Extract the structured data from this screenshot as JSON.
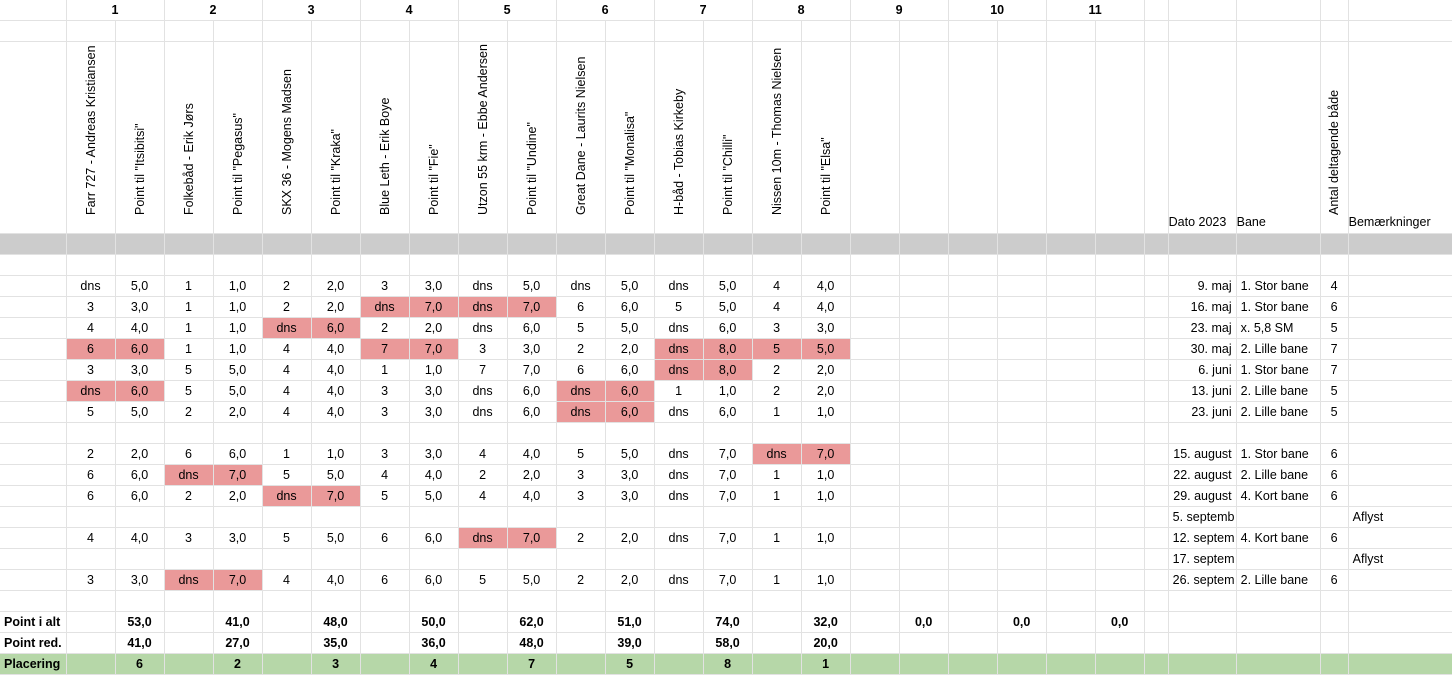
{
  "column_numbers": [
    "1",
    "2",
    "3",
    "4",
    "5",
    "6",
    "7",
    "8",
    "9",
    "10",
    "11"
  ],
  "boats": [
    {
      "boat_header": "Farr 727 - Andreas Kristiansen",
      "point_header": "Point til \"Itsibitsi\""
    },
    {
      "boat_header": "Folkebåd - Erik Jørs",
      "point_header": "Point til \"Pegasus\""
    },
    {
      "boat_header": "SKX 36 - Mogens Madsen",
      "point_header": "Point til \"Kraka\""
    },
    {
      "boat_header": "Blue Leth - Erik Boye",
      "point_header": "Point til \"Fie\""
    },
    {
      "boat_header": "Utzon 55 krm - Ebbe Andersen",
      "point_header": "Point til \"Undine\""
    },
    {
      "boat_header": "Great Dane - Laurits Nielsen",
      "point_header": "Point til \"Monalisa\""
    },
    {
      "boat_header": "H-båd - Tobias Kirkeby",
      "point_header": "Point til \"Chilli\""
    },
    {
      "boat_header": "Nissen 10m - Thomas Nielsen",
      "point_header": "Point til \"Elsa\""
    }
  ],
  "right_headers": {
    "dato": "Dato 2023",
    "bane": "Bane",
    "antal": "Antal deltagende både",
    "bemaerk": "Bemærkninger"
  },
  "rows": [
    {
      "cells": [
        [
          "dns",
          "5,0"
        ],
        [
          "1",
          "1,0"
        ],
        [
          "2",
          "2,0"
        ],
        [
          "3",
          "3,0"
        ],
        [
          "dns",
          "5,0"
        ],
        [
          "dns",
          "5,0"
        ],
        [
          "dns",
          "5,0"
        ],
        [
          "4",
          "4,0"
        ]
      ],
      "red": [],
      "dato": "9. maj",
      "bane": "1. Stor bane",
      "antal": "4",
      "bem": ""
    },
    {
      "cells": [
        [
          "3",
          "3,0"
        ],
        [
          "1",
          "1,0"
        ],
        [
          "2",
          "2,0"
        ],
        [
          "dns",
          "7,0"
        ],
        [
          "dns",
          "7,0"
        ],
        [
          "6",
          "6,0"
        ],
        [
          "5",
          "5,0"
        ],
        [
          "4",
          "4,0"
        ]
      ],
      "red": [
        3,
        4
      ],
      "dato": "16. maj",
      "bane": "1. Stor bane",
      "antal": "6",
      "bem": ""
    },
    {
      "cells": [
        [
          "4",
          "4,0"
        ],
        [
          "1",
          "1,0"
        ],
        [
          "dns",
          "6,0"
        ],
        [
          "2",
          "2,0"
        ],
        [
          "dns",
          "6,0"
        ],
        [
          "5",
          "5,0"
        ],
        [
          "dns",
          "6,0"
        ],
        [
          "3",
          "3,0"
        ]
      ],
      "red": [
        2
      ],
      "dato": "23. maj",
      "bane": "x. 5,8 SM",
      "antal": "5",
      "bem": ""
    },
    {
      "cells": [
        [
          "6",
          "6,0"
        ],
        [
          "1",
          "1,0"
        ],
        [
          "4",
          "4,0"
        ],
        [
          "7",
          "7,0"
        ],
        [
          "3",
          "3,0"
        ],
        [
          "2",
          "2,0"
        ],
        [
          "dns",
          "8,0"
        ],
        [
          "5",
          "5,0"
        ]
      ],
      "red": [
        0,
        3,
        6,
        7
      ],
      "dato": "30. maj",
      "bane": "2. Lille bane",
      "antal": "7",
      "bem": ""
    },
    {
      "cells": [
        [
          "3",
          "3,0"
        ],
        [
          "5",
          "5,0"
        ],
        [
          "4",
          "4,0"
        ],
        [
          "1",
          "1,0"
        ],
        [
          "7",
          "7,0"
        ],
        [
          "6",
          "6,0"
        ],
        [
          "dns",
          "8,0"
        ],
        [
          "2",
          "2,0"
        ]
      ],
      "red": [
        6
      ],
      "dato": "6. juni",
      "bane": "1. Stor bane",
      "antal": "7",
      "bem": ""
    },
    {
      "cells": [
        [
          "dns",
          "6,0"
        ],
        [
          "5",
          "5,0"
        ],
        [
          "4",
          "4,0"
        ],
        [
          "3",
          "3,0"
        ],
        [
          "dns",
          "6,0"
        ],
        [
          "dns",
          "6,0"
        ],
        [
          "1",
          "1,0"
        ],
        [
          "2",
          "2,0"
        ]
      ],
      "red": [
        0,
        5
      ],
      "dato": "13. juni",
      "bane": "2. Lille bane",
      "antal": "5",
      "bem": ""
    },
    {
      "cells": [
        [
          "5",
          "5,0"
        ],
        [
          "2",
          "2,0"
        ],
        [
          "4",
          "4,0"
        ],
        [
          "3",
          "3,0"
        ],
        [
          "dns",
          "6,0"
        ],
        [
          "dns",
          "6,0"
        ],
        [
          "dns",
          "6,0"
        ],
        [
          "1",
          "1,0"
        ]
      ],
      "red": [
        5
      ],
      "dato": "23. juni",
      "bane": "2. Lille bane",
      "antal": "5",
      "bem": ""
    },
    {
      "empty": true
    },
    {
      "cells": [
        [
          "2",
          "2,0"
        ],
        [
          "6",
          "6,0"
        ],
        [
          "1",
          "1,0"
        ],
        [
          "3",
          "3,0"
        ],
        [
          "4",
          "4,0"
        ],
        [
          "5",
          "5,0"
        ],
        [
          "dns",
          "7,0"
        ],
        [
          "dns",
          "7,0"
        ]
      ],
      "red": [
        7
      ],
      "dato": "15. august",
      "bane": "1. Stor bane",
      "antal": "6",
      "bem": ""
    },
    {
      "cells": [
        [
          "6",
          "6,0"
        ],
        [
          "dns",
          "7,0"
        ],
        [
          "5",
          "5,0"
        ],
        [
          "4",
          "4,0"
        ],
        [
          "2",
          "2,0"
        ],
        [
          "3",
          "3,0"
        ],
        [
          "dns",
          "7,0"
        ],
        [
          "1",
          "1,0"
        ]
      ],
      "red": [
        1
      ],
      "dato": "22. august",
      "bane": "2. Lille bane",
      "antal": "6",
      "bem": ""
    },
    {
      "cells": [
        [
          "6",
          "6,0"
        ],
        [
          "2",
          "2,0"
        ],
        [
          "dns",
          "7,0"
        ],
        [
          "5",
          "5,0"
        ],
        [
          "4",
          "4,0"
        ],
        [
          "3",
          "3,0"
        ],
        [
          "dns",
          "7,0"
        ],
        [
          "1",
          "1,0"
        ]
      ],
      "red": [
        2
      ],
      "dato": "29. august",
      "bane": "4. Kort bane",
      "antal": "6",
      "bem": ""
    },
    {
      "cells": [
        [
          "",
          ""
        ],
        [
          "",
          ""
        ],
        [
          "",
          ""
        ],
        [
          "",
          ""
        ],
        [
          "",
          ""
        ],
        [
          "",
          ""
        ],
        [
          "",
          ""
        ],
        [
          "",
          ""
        ]
      ],
      "red": [],
      "dato": "5. septemb",
      "bane": "",
      "antal": "",
      "bem": "Aflyst"
    },
    {
      "cells": [
        [
          "4",
          "4,0"
        ],
        [
          "3",
          "3,0"
        ],
        [
          "5",
          "5,0"
        ],
        [
          "6",
          "6,0"
        ],
        [
          "dns",
          "7,0"
        ],
        [
          "2",
          "2,0"
        ],
        [
          "dns",
          "7,0"
        ],
        [
          "1",
          "1,0"
        ]
      ],
      "red": [
        4
      ],
      "dato": "12. septem",
      "bane": "4. Kort bane",
      "antal": "6",
      "bem": ""
    },
    {
      "cells": [
        [
          "",
          ""
        ],
        [
          "",
          ""
        ],
        [
          "",
          ""
        ],
        [
          "",
          ""
        ],
        [
          "",
          ""
        ],
        [
          "",
          ""
        ],
        [
          "",
          ""
        ],
        [
          "",
          ""
        ]
      ],
      "red": [],
      "dato": "17. septem",
      "bane": "",
      "antal": "",
      "bem": "Aflyst"
    },
    {
      "cells": [
        [
          "3",
          "3,0"
        ],
        [
          "dns",
          "7,0"
        ],
        [
          "4",
          "4,0"
        ],
        [
          "6",
          "6,0"
        ],
        [
          "5",
          "5,0"
        ],
        [
          "2",
          "2,0"
        ],
        [
          "dns",
          "7,0"
        ],
        [
          "1",
          "1,0"
        ]
      ],
      "red": [
        1
      ],
      "dato": "26. septem",
      "bane": "2. Lille bane",
      "antal": "6",
      "bem": ""
    },
    {
      "empty": true
    }
  ],
  "summary": {
    "point_i_alt": {
      "label": "Point i alt",
      "values": [
        "53,0",
        "41,0",
        "48,0",
        "50,0",
        "62,0",
        "51,0",
        "74,0",
        "32,0"
      ],
      "extra": [
        "0,0",
        "0,0",
        "0,0"
      ]
    },
    "point_red": {
      "label": "Point red.",
      "values": [
        "41,0",
        "27,0",
        "35,0",
        "36,0",
        "48,0",
        "39,0",
        "58,0",
        "20,0"
      ]
    },
    "placering": {
      "label": "Placering",
      "values": [
        "6",
        "2",
        "3",
        "4",
        "7",
        "5",
        "8",
        "1"
      ]
    }
  }
}
